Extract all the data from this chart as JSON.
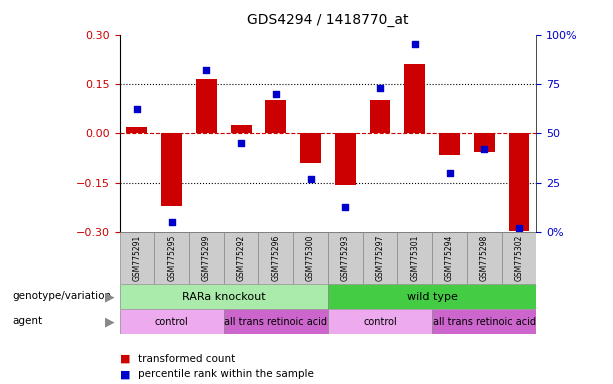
{
  "title": "GDS4294 / 1418770_at",
  "samples": [
    "GSM775291",
    "GSM775295",
    "GSM775299",
    "GSM775292",
    "GSM775296",
    "GSM775300",
    "GSM775293",
    "GSM775297",
    "GSM775301",
    "GSM775294",
    "GSM775298",
    "GSM775302"
  ],
  "bar_values": [
    0.02,
    -0.22,
    0.165,
    0.025,
    0.1,
    -0.09,
    -0.155,
    0.1,
    0.21,
    -0.065,
    -0.055,
    -0.295
  ],
  "scatter_values": [
    62.5,
    5.0,
    82.0,
    45.0,
    70.0,
    27.0,
    13.0,
    73.0,
    95.0,
    30.0,
    42.0,
    2.0
  ],
  "bar_color": "#CC0000",
  "scatter_color": "#0000CC",
  "ylim_left": [
    -0.3,
    0.3
  ],
  "ylim_right": [
    0,
    100
  ],
  "yticks_left": [
    -0.3,
    -0.15,
    0,
    0.15,
    0.3
  ],
  "yticks_right": [
    0,
    25,
    50,
    75,
    100
  ],
  "ytick_labels_right": [
    "0%",
    "25",
    "50",
    "75",
    "100%"
  ],
  "hlines": [
    0.15,
    -0.15
  ],
  "hline_zero_color": "#CC0000",
  "hline_color": "#000000",
  "background_color": "#ffffff",
  "plot_bg_color": "#ffffff",
  "groups": [
    {
      "label": "RARa knockout",
      "start": 0,
      "end": 6,
      "color": "#AAEAAA"
    },
    {
      "label": "wild type",
      "start": 6,
      "end": 12,
      "color": "#44CC44"
    }
  ],
  "agents": [
    {
      "label": "control",
      "start": 0,
      "end": 3,
      "color": "#EEAAEE"
    },
    {
      "label": "all trans retinoic acid",
      "start": 3,
      "end": 6,
      "color": "#CC66CC"
    },
    {
      "label": "control",
      "start": 6,
      "end": 9,
      "color": "#EEAAEE"
    },
    {
      "label": "all trans retinoic acid",
      "start": 9,
      "end": 12,
      "color": "#CC66CC"
    }
  ],
  "row_labels": [
    "genotype/variation",
    "agent"
  ],
  "legend_items": [
    {
      "label": "transformed count",
      "color": "#CC0000"
    },
    {
      "label": "percentile rank within the sample",
      "color": "#0000CC"
    }
  ],
  "bar_width": 0.6,
  "figsize": [
    6.13,
    3.84
  ],
  "dpi": 100
}
